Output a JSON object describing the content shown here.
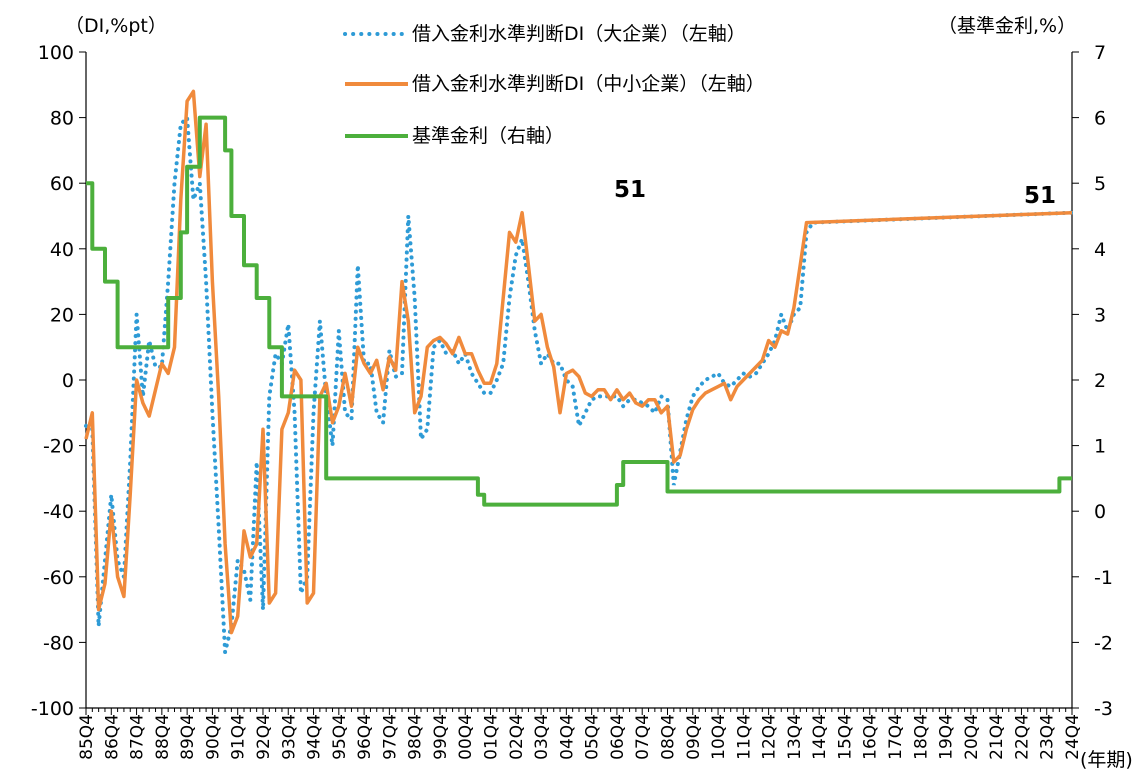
{
  "chart_data": {
    "type": "line",
    "y_left_unit": "（DI,%pt）",
    "y_right_unit": "（基準金利,%）",
    "x_unit": "(年期)",
    "ylim_left": [
      -100,
      100
    ],
    "ylim_right": [
      -3,
      7
    ],
    "yticks_left": [
      "100",
      "80",
      "60",
      "40",
      "20",
      "0",
      "-20",
      "-40",
      "-60",
      "-80",
      "-100"
    ],
    "yticks_right": [
      "7",
      "6",
      "5",
      "4",
      "3",
      "2",
      "1",
      "0",
      "-1",
      "-2",
      "-3"
    ],
    "grid": false,
    "legend_placement": "top-center",
    "x_start": "85Q4",
    "x_end": "24Q4",
    "x_labels": [
      "85Q4",
      "86Q4",
      "87Q4",
      "88Q4",
      "89Q4",
      "90Q4",
      "91Q4",
      "92Q4",
      "93Q4",
      "94Q4",
      "95Q4",
      "96Q4",
      "97Q4",
      "98Q4",
      "99Q4",
      "00Q4",
      "01Q4",
      "02Q4",
      "03Q4",
      "04Q4",
      "05Q4",
      "06Q4",
      "07Q4",
      "08Q4",
      "09Q4",
      "10Q4",
      "11Q4",
      "12Q4",
      "13Q4",
      "14Q4",
      "15Q4",
      "16Q4",
      "17Q4",
      "18Q4",
      "19Q4",
      "20Q4",
      "21Q4",
      "22Q4",
      "23Q4",
      "24Q4"
    ],
    "series": [
      {
        "name": "借入金利水準判断DI（大企業）（左軸）",
        "axis": "left",
        "color": "#2e9bd6",
        "style": "dotted",
        "points": [
          [
            "85Q4",
            -14
          ],
          [
            "86Q1",
            -15
          ],
          [
            "86Q2",
            -75
          ],
          [
            "86Q3",
            -55
          ],
          [
            "86Q4",
            -35
          ],
          [
            "87Q1",
            -55
          ],
          [
            "87Q2",
            -60
          ],
          [
            "87Q3",
            -25
          ],
          [
            "87Q4",
            20
          ],
          [
            "88Q1",
            -5
          ],
          [
            "88Q2",
            12
          ],
          [
            "88Q3",
            4
          ],
          [
            "88Q4",
            4
          ],
          [
            "89Q1",
            30
          ],
          [
            "89Q2",
            60
          ],
          [
            "89Q3",
            78
          ],
          [
            "89Q4",
            80
          ],
          [
            "90Q1",
            55
          ],
          [
            "90Q2",
            60
          ],
          [
            "90Q3",
            30
          ],
          [
            "90Q4",
            -10
          ],
          [
            "91Q1",
            -45
          ],
          [
            "91Q2",
            -83
          ],
          [
            "91Q3",
            -75
          ],
          [
            "91Q4",
            -55
          ],
          [
            "92Q1",
            -58
          ],
          [
            "92Q2",
            -67
          ],
          [
            "92Q3",
            -25
          ],
          [
            "92Q4",
            -70
          ],
          [
            "93Q1",
            -5
          ],
          [
            "93Q2",
            8
          ],
          [
            "93Q3",
            5
          ],
          [
            "93Q4",
            17
          ],
          [
            "94Q1",
            -10
          ],
          [
            "94Q2",
            -65
          ],
          [
            "94Q3",
            -60
          ],
          [
            "94Q4",
            -10
          ],
          [
            "95Q1",
            18
          ],
          [
            "95Q2",
            -5
          ],
          [
            "95Q3",
            -20
          ],
          [
            "95Q4",
            15
          ],
          [
            "96Q1",
            -10
          ],
          [
            "96Q2",
            -12
          ],
          [
            "96Q3",
            35
          ],
          [
            "96Q4",
            5
          ],
          [
            "97Q1",
            5
          ],
          [
            "97Q2",
            -10
          ],
          [
            "97Q3",
            -13
          ],
          [
            "97Q4",
            9
          ],
          [
            "98Q1",
            1
          ],
          [
            "98Q2",
            2
          ],
          [
            "98Q3",
            50
          ],
          [
            "98Q4",
            25
          ],
          [
            "99Q1",
            -18
          ],
          [
            "99Q2",
            -15
          ],
          [
            "99Q3",
            10
          ],
          [
            "99Q4",
            12
          ],
          [
            "00Q1",
            8
          ],
          [
            "00Q2",
            9
          ],
          [
            "00Q3",
            5
          ],
          [
            "00Q4",
            8
          ],
          [
            "01Q1",
            2
          ],
          [
            "01Q2",
            -1
          ],
          [
            "01Q3",
            -4
          ],
          [
            "01Q4",
            -4
          ],
          [
            "02Q1",
            0
          ],
          [
            "02Q2",
            5
          ],
          [
            "02Q3",
            25
          ],
          [
            "02Q4",
            38
          ],
          [
            "03Q1",
            43
          ],
          [
            "03Q2",
            30
          ],
          [
            "03Q3",
            15
          ],
          [
            "03Q4",
            5
          ],
          [
            "04Q1",
            8
          ],
          [
            "04Q2",
            5
          ],
          [
            "04Q3",
            5
          ],
          [
            "04Q4",
            0
          ],
          [
            "05Q1",
            -2
          ],
          [
            "05Q2",
            -14
          ],
          [
            "05Q3",
            -10
          ],
          [
            "05Q4",
            -6
          ],
          [
            "06Q1",
            -5
          ],
          [
            "06Q2",
            -5
          ],
          [
            "06Q3",
            -5
          ],
          [
            "06Q4",
            -5
          ],
          [
            "07Q1",
            -8
          ],
          [
            "07Q2",
            -6
          ],
          [
            "07Q3",
            -6
          ],
          [
            "07Q4",
            -7
          ],
          [
            "08Q1",
            -8
          ],
          [
            "08Q2",
            -10
          ],
          [
            "08Q3",
            -5
          ],
          [
            "08Q4",
            -6
          ],
          [
            "09Q1",
            -32
          ],
          [
            "09Q2",
            -22
          ],
          [
            "09Q3",
            -12
          ],
          [
            "09Q4",
            -5
          ],
          [
            "10Q1",
            -2
          ],
          [
            "10Q2",
            0
          ],
          [
            "10Q3",
            1
          ],
          [
            "10Q4",
            2
          ],
          [
            "11Q1",
            -1
          ],
          [
            "11Q2",
            -2
          ],
          [
            "11Q3",
            0
          ],
          [
            "11Q4",
            2
          ],
          [
            "12Q1",
            1
          ],
          [
            "12Q2",
            2
          ],
          [
            "12Q3",
            5
          ],
          [
            "12Q4",
            8
          ],
          [
            "13Q1",
            12
          ],
          [
            "13Q2",
            20
          ],
          [
            "13Q3",
            15
          ],
          [
            "13Q4",
            20
          ],
          [
            "14Q1",
            22
          ],
          [
            "14Q2",
            45
          ],
          [
            "14Q3",
            48
          ],
          [
            "24Q4",
            51
          ]
        ]
      },
      {
        "name": "借入金利水準判断DI（中小企業）（左軸）",
        "axis": "left",
        "color": "#f08a3c",
        "style": "solid",
        "points": [
          [
            "85Q4",
            -18
          ],
          [
            "86Q1",
            -10
          ],
          [
            "86Q2",
            -70
          ],
          [
            "86Q3",
            -62
          ],
          [
            "86Q4",
            -40
          ],
          [
            "87Q1",
            -60
          ],
          [
            "87Q2",
            -66
          ],
          [
            "87Q3",
            -35
          ],
          [
            "87Q4",
            0
          ],
          [
            "88Q1",
            -7
          ],
          [
            "88Q2",
            -11
          ],
          [
            "88Q3",
            -3
          ],
          [
            "88Q4",
            5
          ],
          [
            "89Q1",
            2
          ],
          [
            "89Q2",
            10
          ],
          [
            "89Q3",
            55
          ],
          [
            "89Q4",
            85
          ],
          [
            "90Q1",
            88
          ],
          [
            "90Q2",
            62
          ],
          [
            "90Q3",
            78
          ],
          [
            "90Q4",
            30
          ],
          [
            "91Q1",
            -5
          ],
          [
            "91Q2",
            -50
          ],
          [
            "91Q3",
            -77
          ],
          [
            "91Q4",
            -72
          ],
          [
            "92Q1",
            -46
          ],
          [
            "92Q2",
            -54
          ],
          [
            "92Q3",
            -50
          ],
          [
            "92Q4",
            -15
          ],
          [
            "93Q1",
            -68
          ],
          [
            "93Q2",
            -65
          ],
          [
            "93Q3",
            -15
          ],
          [
            "93Q4",
            -10
          ],
          [
            "94Q1",
            3
          ],
          [
            "94Q2",
            0
          ],
          [
            "94Q3",
            -68
          ],
          [
            "94Q4",
            -65
          ],
          [
            "95Q1",
            -5
          ],
          [
            "95Q2",
            -1
          ],
          [
            "95Q3",
            -13
          ],
          [
            "95Q4",
            -8
          ],
          [
            "96Q1",
            2
          ],
          [
            "96Q2",
            -8
          ],
          [
            "96Q3",
            10
          ],
          [
            "96Q4",
            5
          ],
          [
            "97Q1",
            2
          ],
          [
            "97Q2",
            6
          ],
          [
            "97Q3",
            -3
          ],
          [
            "97Q4",
            7
          ],
          [
            "98Q1",
            3
          ],
          [
            "98Q2",
            30
          ],
          [
            "98Q3",
            18
          ],
          [
            "98Q4",
            -10
          ],
          [
            "99Q1",
            -5
          ],
          [
            "99Q2",
            10
          ],
          [
            "99Q3",
            12
          ],
          [
            "99Q4",
            13
          ],
          [
            "00Q1",
            11
          ],
          [
            "00Q2",
            8
          ],
          [
            "00Q3",
            13
          ],
          [
            "00Q4",
            8
          ],
          [
            "01Q1",
            8
          ],
          [
            "01Q2",
            3
          ],
          [
            "01Q3",
            -1
          ],
          [
            "01Q4",
            -1
          ],
          [
            "02Q1",
            5
          ],
          [
            "02Q2",
            25
          ],
          [
            "02Q3",
            45
          ],
          [
            "02Q4",
            42
          ],
          [
            "03Q1",
            51
          ],
          [
            "03Q2",
            35
          ],
          [
            "03Q3",
            18
          ],
          [
            "03Q4",
            20
          ],
          [
            "04Q1",
            10
          ],
          [
            "04Q2",
            4
          ],
          [
            "04Q3",
            -10
          ],
          [
            "04Q4",
            2
          ],
          [
            "05Q1",
            3
          ],
          [
            "05Q2",
            1
          ],
          [
            "05Q3",
            -4
          ],
          [
            "05Q4",
            -5
          ],
          [
            "06Q1",
            -3
          ],
          [
            "06Q2",
            -3
          ],
          [
            "06Q3",
            -6
          ],
          [
            "06Q4",
            -3
          ],
          [
            "07Q1",
            -6
          ],
          [
            "07Q2",
            -4
          ],
          [
            "07Q3",
            -7
          ],
          [
            "07Q4",
            -8
          ],
          [
            "08Q1",
            -6
          ],
          [
            "08Q2",
            -6
          ],
          [
            "08Q3",
            -10
          ],
          [
            "08Q4",
            -8
          ],
          [
            "09Q1",
            -25
          ],
          [
            "09Q2",
            -23
          ],
          [
            "09Q3",
            -15
          ],
          [
            "09Q4",
            -9
          ],
          [
            "10Q1",
            -6
          ],
          [
            "10Q2",
            -4
          ],
          [
            "10Q3",
            -3
          ],
          [
            "10Q4",
            -2
          ],
          [
            "11Q1",
            -1
          ],
          [
            "11Q2",
            -6
          ],
          [
            "11Q3",
            -2
          ],
          [
            "11Q4",
            0
          ],
          [
            "12Q1",
            2
          ],
          [
            "12Q2",
            4
          ],
          [
            "12Q3",
            6
          ],
          [
            "12Q4",
            12
          ],
          [
            "13Q1",
            10
          ],
          [
            "13Q2",
            15
          ],
          [
            "13Q3",
            14
          ],
          [
            "13Q4",
            22
          ],
          [
            "14Q1",
            35
          ],
          [
            "14Q2",
            48
          ],
          [
            "24Q4",
            51
          ]
        ]
      },
      {
        "name": "基準金利（右軸）",
        "axis": "right",
        "color": "#4caf3c",
        "style": "solid",
        "points": []
      }
    ],
    "annotations": [
      "51",
      "51"
    ]
  }
}
